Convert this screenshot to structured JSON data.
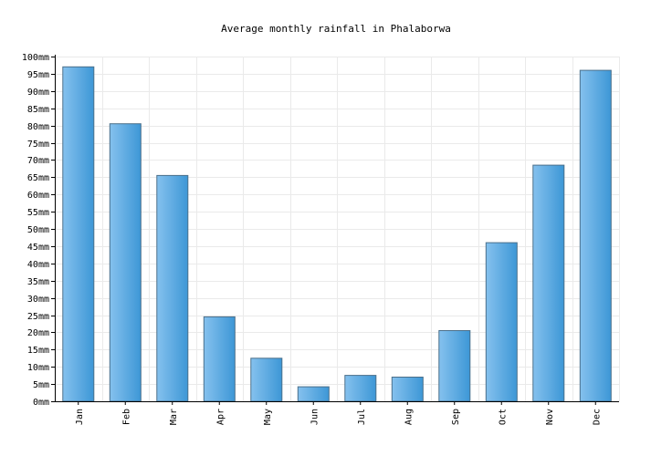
{
  "chart_data": {
    "type": "bar",
    "title": "Average monthly rainfall in Phalaborwa",
    "xlabel": "",
    "ylabel": "",
    "categories": [
      "Jan",
      "Feb",
      "Mar",
      "Apr",
      "May",
      "Jun",
      "Jul",
      "Aug",
      "Sep",
      "Oct",
      "Nov",
      "Dec"
    ],
    "values": [
      97,
      80.5,
      65.5,
      24.5,
      12.5,
      4.2,
      7.5,
      7,
      20.5,
      46,
      68.5,
      96
    ],
    "ylim": [
      0,
      100
    ],
    "ytick_step": 5,
    "ytick_unit": "mm",
    "grid": true,
    "colors": {
      "bar_light": "#85c1ee",
      "bar_dark": "#3d97d6",
      "bar_edge": "#4a6f8a",
      "grid": "#eaeaea"
    }
  }
}
